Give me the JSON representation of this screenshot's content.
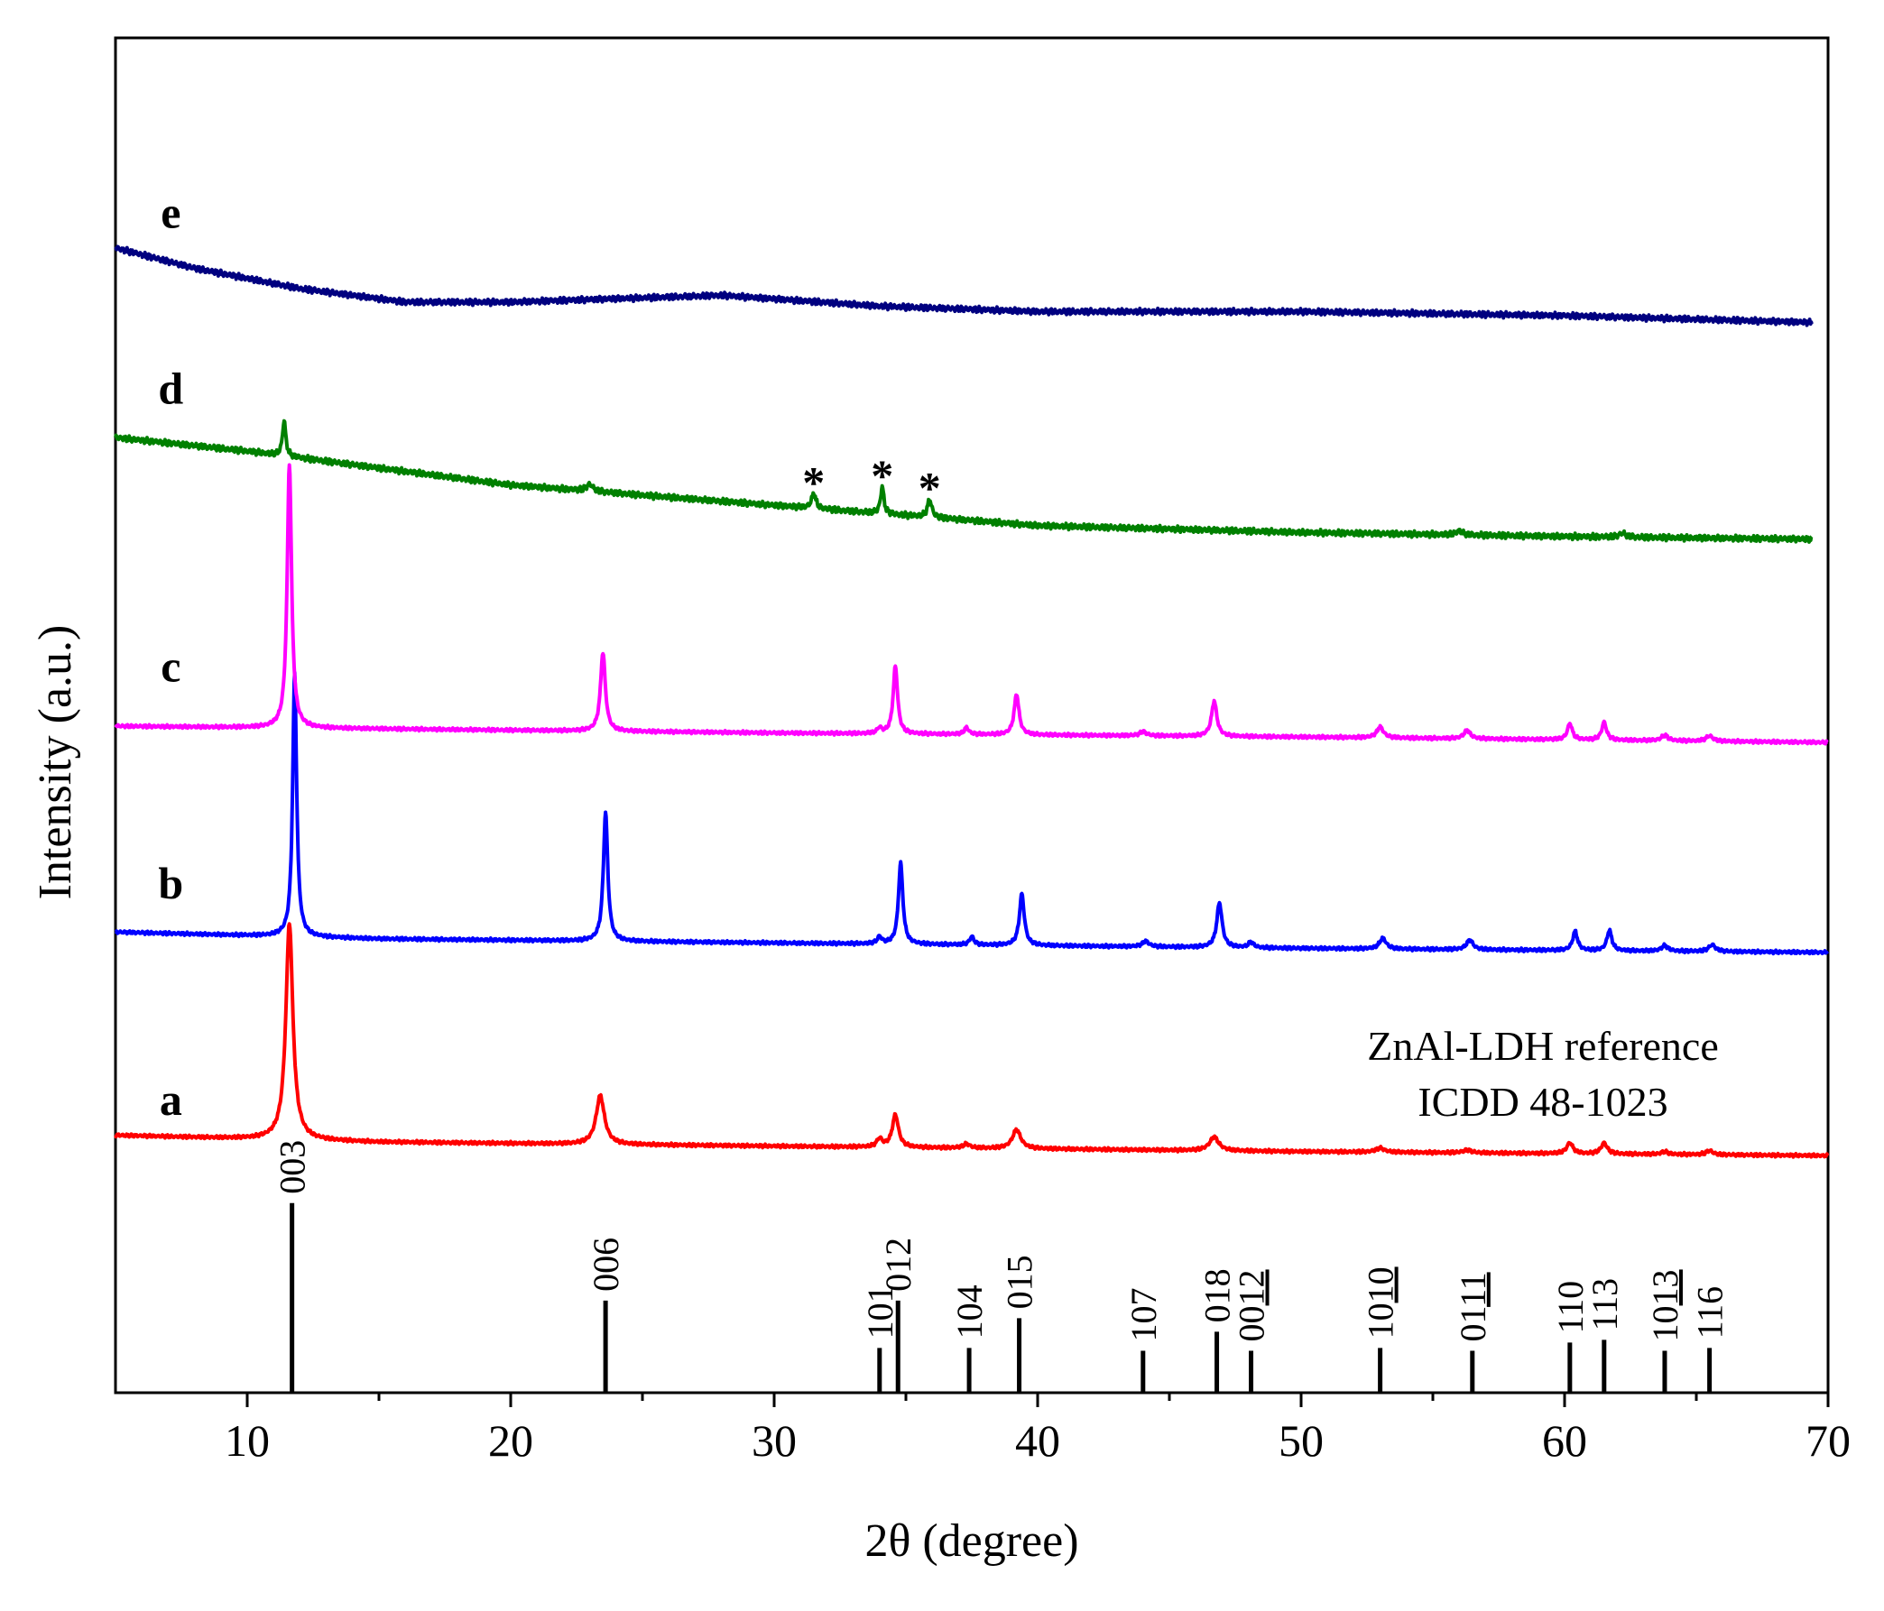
{
  "chart_data": {
    "type": "line",
    "title": "",
    "xlabel": "2θ (degree)",
    "ylabel": "Intensity (a.u.)",
    "xlim": [
      5,
      70
    ],
    "ylim": [
      -1.9,
      8.1
    ],
    "xticks": [
      10,
      20,
      30,
      40,
      50,
      60,
      70
    ],
    "grid": false,
    "reference": {
      "title_line1": "ZnAl-LDH  reference",
      "title_line2": "ICDD 48-1023",
      "color": "#000000",
      "lines": [
        {
          "pos": 11.7,
          "height": 1.4,
          "label": "003",
          "underline": ""
        },
        {
          "pos": 23.6,
          "height": 0.68,
          "label": "006",
          "underline": ""
        },
        {
          "pos": 34.0,
          "height": 0.33,
          "label": "101",
          "underline": ""
        },
        {
          "pos": 34.7,
          "height": 0.68,
          "label": "012",
          "underline": ""
        },
        {
          "pos": 37.4,
          "height": 0.33,
          "label": "104",
          "underline": ""
        },
        {
          "pos": 39.3,
          "height": 0.55,
          "label": "015",
          "underline": ""
        },
        {
          "pos": 44.0,
          "height": 0.31,
          "label": "107",
          "underline": ""
        },
        {
          "pos": 46.8,
          "height": 0.45,
          "label": "018",
          "underline": ""
        },
        {
          "pos": 48.1,
          "height": 0.31,
          "label": "0012",
          "underline": "12"
        },
        {
          "pos": 53.0,
          "height": 0.33,
          "label": "1010",
          "underline": "10"
        },
        {
          "pos": 56.5,
          "height": 0.31,
          "label": "0111",
          "underline": "11"
        },
        {
          "pos": 60.2,
          "height": 0.37,
          "label": "110",
          "underline": ""
        },
        {
          "pos": 61.5,
          "height": 0.39,
          "label": "113",
          "underline": ""
        },
        {
          "pos": 63.8,
          "height": 0.31,
          "label": "1013",
          "underline": "13"
        },
        {
          "pos": 65.5,
          "height": 0.33,
          "label": "116",
          "underline": ""
        }
      ]
    },
    "series": [
      {
        "name": "a",
        "color": "#ff0000",
        "label_x": 7.1,
        "label_y": 0.15,
        "baseline": [
          [
            5,
            0
          ],
          [
            15,
            -0.05
          ],
          [
            30,
            -0.08
          ],
          [
            50,
            -0.12
          ],
          [
            70,
            -0.15
          ]
        ],
        "peaks": [
          {
            "pos": 11.6,
            "height": 1.6,
            "width": 0.32
          },
          {
            "pos": 23.4,
            "height": 0.36,
            "width": 0.38
          },
          {
            "pos": 34.0,
            "height": 0.06,
            "width": 0.25
          },
          {
            "pos": 34.6,
            "height": 0.24,
            "width": 0.28
          },
          {
            "pos": 37.3,
            "height": 0.03,
            "width": 0.3
          },
          {
            "pos": 39.2,
            "height": 0.14,
            "width": 0.38
          },
          {
            "pos": 46.7,
            "height": 0.1,
            "width": 0.42
          },
          {
            "pos": 53.0,
            "height": 0.03,
            "width": 0.4
          },
          {
            "pos": 56.3,
            "height": 0.02,
            "width": 0.4
          },
          {
            "pos": 60.2,
            "height": 0.08,
            "width": 0.28
          },
          {
            "pos": 61.5,
            "height": 0.08,
            "width": 0.28
          },
          {
            "pos": 63.8,
            "height": 0.02,
            "width": 0.3
          },
          {
            "pos": 65.5,
            "height": 0.03,
            "width": 0.3
          }
        ]
      },
      {
        "name": "b",
        "color": "#0000ff",
        "label_x": 7.1,
        "label_y": 1.75,
        "baseline": [
          [
            5,
            1.5
          ],
          [
            15,
            1.45
          ],
          [
            30,
            1.42
          ],
          [
            50,
            1.38
          ],
          [
            70,
            1.35
          ]
        ],
        "peaks": [
          {
            "pos": 11.8,
            "height": 1.95,
            "width": 0.18
          },
          {
            "pos": 23.6,
            "height": 0.95,
            "width": 0.2
          },
          {
            "pos": 34.0,
            "height": 0.05,
            "width": 0.2
          },
          {
            "pos": 34.8,
            "height": 0.6,
            "width": 0.2
          },
          {
            "pos": 37.5,
            "height": 0.06,
            "width": 0.2
          },
          {
            "pos": 39.4,
            "height": 0.38,
            "width": 0.22
          },
          {
            "pos": 44.1,
            "height": 0.04,
            "width": 0.3
          },
          {
            "pos": 46.9,
            "height": 0.33,
            "width": 0.24
          },
          {
            "pos": 48.1,
            "height": 0.04,
            "width": 0.25
          },
          {
            "pos": 53.1,
            "height": 0.08,
            "width": 0.3
          },
          {
            "pos": 56.4,
            "height": 0.07,
            "width": 0.3
          },
          {
            "pos": 60.4,
            "height": 0.14,
            "width": 0.22
          },
          {
            "pos": 61.7,
            "height": 0.15,
            "width": 0.22
          },
          {
            "pos": 63.8,
            "height": 0.04,
            "width": 0.3
          },
          {
            "pos": 65.6,
            "height": 0.05,
            "width": 0.3
          }
        ]
      },
      {
        "name": "c",
        "color": "#ff00ff",
        "label_x": 7.1,
        "label_y": 3.35,
        "baseline": [
          [
            5,
            3.02
          ],
          [
            15,
            3.0
          ],
          [
            30,
            2.97
          ],
          [
            50,
            2.94
          ],
          [
            70,
            2.9
          ]
        ],
        "peaks": [
          {
            "pos": 11.6,
            "height": 1.95,
            "width": 0.2
          },
          {
            "pos": 23.5,
            "height": 0.58,
            "width": 0.22
          },
          {
            "pos": 34.0,
            "height": 0.04,
            "width": 0.2
          },
          {
            "pos": 34.6,
            "height": 0.5,
            "width": 0.2
          },
          {
            "pos": 37.3,
            "height": 0.05,
            "width": 0.2
          },
          {
            "pos": 39.2,
            "height": 0.3,
            "width": 0.22
          },
          {
            "pos": 44.0,
            "height": 0.03,
            "width": 0.3
          },
          {
            "pos": 46.7,
            "height": 0.26,
            "width": 0.24
          },
          {
            "pos": 53.0,
            "height": 0.08,
            "width": 0.3
          },
          {
            "pos": 56.3,
            "height": 0.06,
            "width": 0.3
          },
          {
            "pos": 60.2,
            "height": 0.12,
            "width": 0.22
          },
          {
            "pos": 61.5,
            "height": 0.13,
            "width": 0.22
          },
          {
            "pos": 63.8,
            "height": 0.04,
            "width": 0.3
          },
          {
            "pos": 65.5,
            "height": 0.04,
            "width": 0.3
          }
        ]
      },
      {
        "name": "d",
        "color": "#008000",
        "label_x": 7.1,
        "label_y": 5.4,
        "baseline": [
          [
            5,
            5.15
          ],
          [
            10,
            5.05
          ],
          [
            20,
            4.8
          ],
          [
            30,
            4.65
          ],
          [
            40,
            4.5
          ],
          [
            50,
            4.45
          ],
          [
            60,
            4.42
          ],
          [
            69.4,
            4.4
          ]
        ],
        "peaks": [
          {
            "pos": 11.4,
            "height": 0.26,
            "width": 0.15
          },
          {
            "pos": 23.0,
            "height": 0.05,
            "width": 0.3
          },
          {
            "pos": 31.5,
            "height": 0.11,
            "width": 0.2
          },
          {
            "pos": 34.1,
            "height": 0.2,
            "width": 0.15
          },
          {
            "pos": 35.9,
            "height": 0.13,
            "width": 0.2
          },
          {
            "pos": 56.0,
            "height": 0.03,
            "width": 0.3
          },
          {
            "pos": 62.2,
            "height": 0.03,
            "width": 0.3
          }
        ]
      },
      {
        "name": "e",
        "color": "#000080",
        "label_x": 7.1,
        "label_y": 6.7,
        "baseline": [
          [
            5,
            6.55
          ],
          [
            8,
            6.4
          ],
          [
            12,
            6.25
          ],
          [
            16,
            6.15
          ],
          [
            20,
            6.15
          ],
          [
            28,
            6.2
          ],
          [
            34,
            6.12
          ],
          [
            40,
            6.08
          ],
          [
            50,
            6.08
          ],
          [
            60,
            6.05
          ],
          [
            69.4,
            6.0
          ]
        ],
        "peaks": []
      }
    ],
    "annotations": [
      {
        "text": "*",
        "x": 31.5,
        "y": 4.88
      },
      {
        "text": "*",
        "x": 34.1,
        "y": 4.93
      },
      {
        "text": "*",
        "x": 35.9,
        "y": 4.84
      }
    ]
  }
}
